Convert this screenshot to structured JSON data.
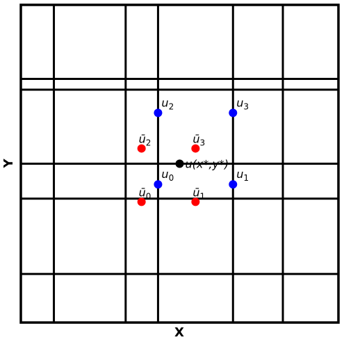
{
  "axes": {
    "x_label": "X",
    "y_label": "Y"
  },
  "grid": {
    "domain": [
      0,
      1
    ],
    "vertical_lines": [
      0.104,
      0.33,
      0.432,
      0.668,
      0.825
    ],
    "horizontal_lines": [
      0.153,
      0.39,
      0.5,
      0.733,
      0.767
    ],
    "border_color": "#000000"
  },
  "points": {
    "blue": [
      {
        "id": "u0",
        "label": "u",
        "sub": "0",
        "x": 0.432,
        "y": 0.435,
        "label_pos": "above-right"
      },
      {
        "id": "u1",
        "label": "u",
        "sub": "1",
        "x": 0.668,
        "y": 0.435,
        "label_pos": "above-right"
      },
      {
        "id": "u2",
        "label": "u",
        "sub": "2",
        "x": 0.432,
        "y": 0.66,
        "label_pos": "above-right"
      },
      {
        "id": "u3",
        "label": "u",
        "sub": "3",
        "x": 0.668,
        "y": 0.66,
        "label_pos": "above-right"
      }
    ],
    "red": [
      {
        "id": "ubar0",
        "label": "ū",
        "sub": "0",
        "x": 0.38,
        "y": 0.38,
        "label_pos": "above"
      },
      {
        "id": "ubar1",
        "label": "ū",
        "sub": "1",
        "x": 0.55,
        "y": 0.38,
        "label_pos": "above"
      },
      {
        "id": "ubar2",
        "label": "ū",
        "sub": "2",
        "x": 0.38,
        "y": 0.548,
        "label_pos": "above"
      },
      {
        "id": "ubar3",
        "label": "ū",
        "sub": "3",
        "x": 0.55,
        "y": 0.548,
        "label_pos": "above"
      }
    ],
    "black": [
      {
        "id": "target",
        "label": "u(x*,y*)",
        "x": 0.5,
        "y": 0.5
      }
    ]
  },
  "colors": {
    "blue": "#0000ff",
    "red": "#ff0000",
    "black": "#000000"
  }
}
